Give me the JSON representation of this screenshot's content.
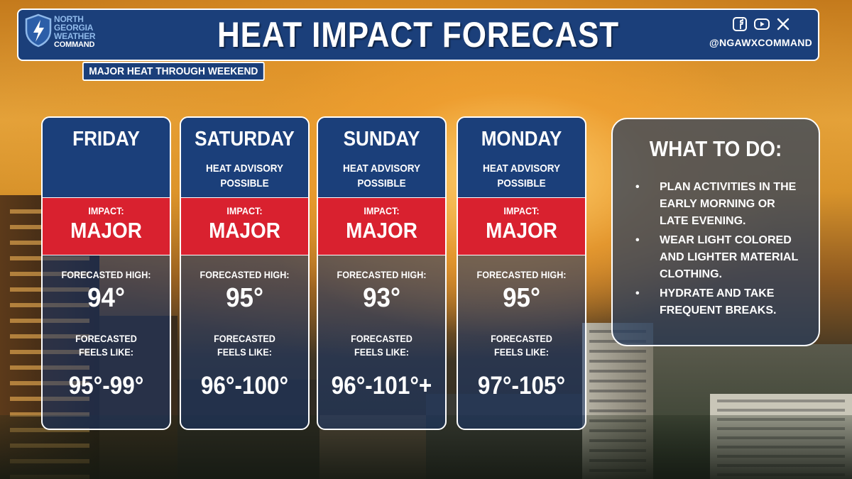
{
  "brand": {
    "logo_lines": [
      "NORTH",
      "GEORGIA",
      "WEATHER",
      "COMMAND"
    ],
    "handle": "@NGAWXCOMMAND",
    "social_icons": [
      "facebook-icon",
      "youtube-icon",
      "x-icon"
    ]
  },
  "header": {
    "title": "HEAT IMPACT FORECAST",
    "subtitle": "MAJOR HEAT THROUGH WEEKEND"
  },
  "colors": {
    "navy": "#1b3f7a",
    "impact_red": "#d9212f",
    "text": "#ffffff"
  },
  "days": [
    {
      "day": "FRIDAY",
      "advisory": "",
      "impact_label": "IMPACT:",
      "impact": "MAJOR",
      "high_label": "FORECASTED HIGH:",
      "high": "94°",
      "feels_label": "FORECASTED FEELS LIKE:",
      "feels_like": "95°-99°"
    },
    {
      "day": "SATURDAY",
      "advisory": "HEAT ADVISORY POSSIBLE",
      "impact_label": "IMPACT:",
      "impact": "MAJOR",
      "high_label": "FORECASTED HIGH:",
      "high": "95°",
      "feels_label": "FORECASTED FEELS LIKE:",
      "feels_like": "96°-100°"
    },
    {
      "day": "SUNDAY",
      "advisory": "HEAT ADVISORY POSSIBLE",
      "impact_label": "IMPACT:",
      "impact": "MAJOR",
      "high_label": "FORECASTED HIGH:",
      "high": "93°",
      "feels_label": "FORECASTED FEELS LIKE:",
      "feels_like": "96°-101°+"
    },
    {
      "day": "MONDAY",
      "advisory": "HEAT ADVISORY POSSIBLE",
      "impact_label": "IMPACT:",
      "impact": "MAJOR",
      "high_label": "FORECASTED HIGH:",
      "high": "95°",
      "feels_label": "FORECASTED FEELS LIKE:",
      "feels_like": "97°-105°"
    }
  ],
  "todo": {
    "title": "WHAT TO DO:",
    "bullet": "•",
    "items": [
      "PLAN ACTIVITIES IN THE EARLY MORNING OR LATE EVENING.",
      "WEAR LIGHT COLORED AND LIGHTER MATERIAL CLOTHING.",
      "HYDRATE AND TAKE FREQUENT BREAKS."
    ]
  }
}
